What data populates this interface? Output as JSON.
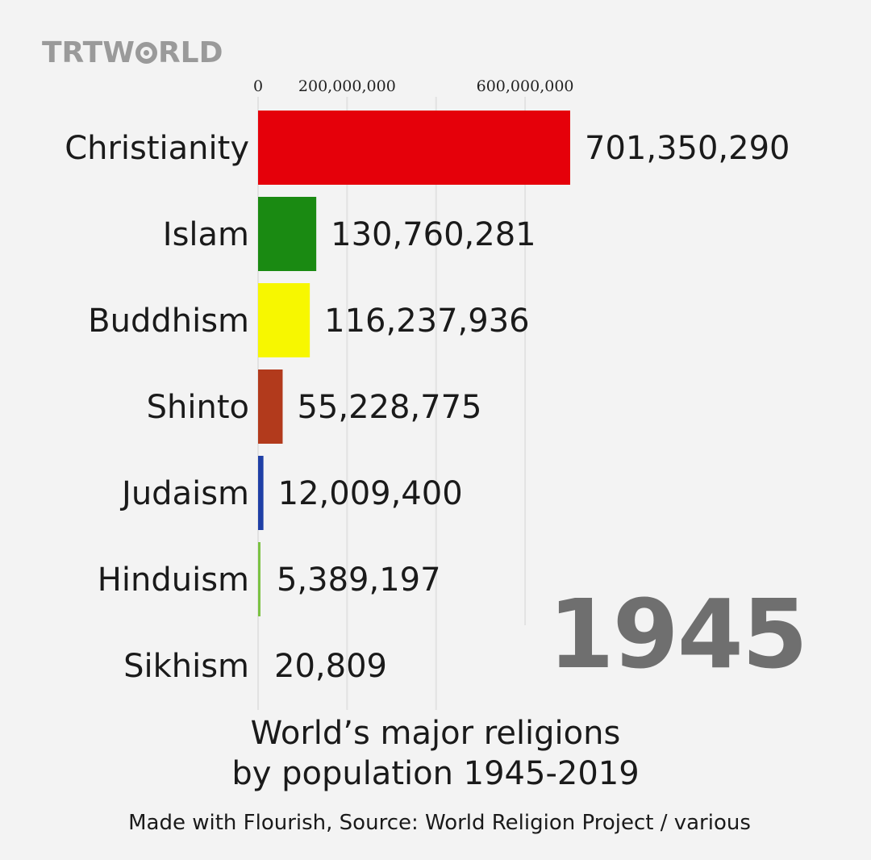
{
  "logo": {
    "part1": "TRT",
    "part2": "W",
    "part3": "RLD"
  },
  "year": "1945",
  "title_line1": "World’s major religions",
  "title_line2": "by population 1945-2019",
  "source": "Made with Flourish, Source: World Religion Project / various",
  "chart_data": {
    "type": "bar",
    "orientation": "horizontal",
    "categories": [
      "Christianity",
      "Islam",
      "Buddhism",
      "Shinto",
      "Judaism",
      "Hinduism",
      "Sikhism"
    ],
    "values": [
      701350290,
      130760281,
      116237936,
      55228775,
      12009400,
      5389197,
      20809
    ],
    "value_labels": [
      "701,350,290",
      "130,760,281",
      "116,237,936",
      "55,228,775",
      "12,009,400",
      "5,389,197",
      "20,809"
    ],
    "colors": [
      "#e5000a",
      "#1a8a12",
      "#f7f700",
      "#b23a1c",
      "#1f3fa6",
      "#7bc242",
      "#9a9a9a"
    ],
    "x_ticks": [
      0,
      200000000,
      600000000
    ],
    "x_tick_labels": [
      "0",
      "200,000,000",
      "600,000,000"
    ],
    "gridlines": [
      0,
      200000000,
      400000000,
      600000000
    ],
    "xlim": [
      0,
      700000000
    ],
    "grid": true,
    "axis_position": "top"
  }
}
